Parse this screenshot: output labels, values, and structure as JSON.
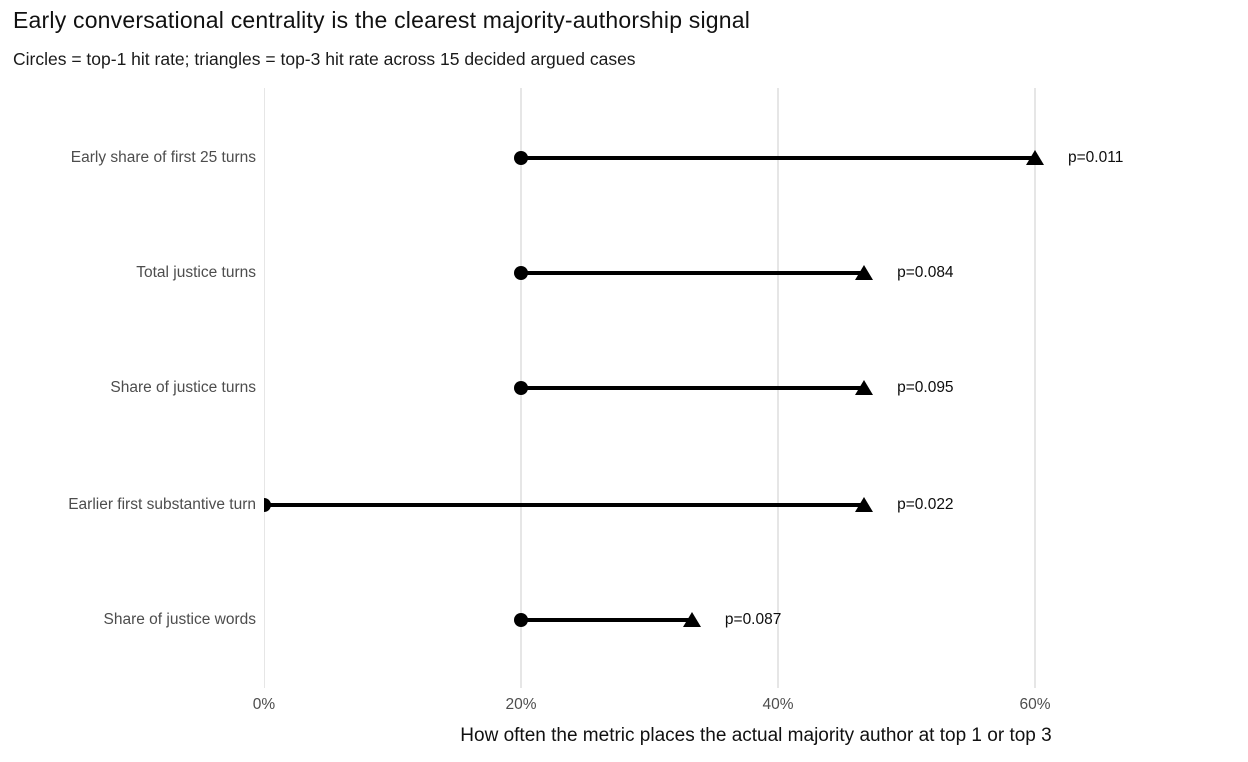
{
  "colors": {
    "background": "#ffffff",
    "gridline": "#e6e6e6",
    "marker": "#000000",
    "title_text": "#111111",
    "axis_text": "#4d4d4d",
    "p_label_text": "#0d0d0d"
  },
  "chart_data": {
    "type": "dumbbell",
    "title": "Early conversational centrality is the clearest majority-authorship signal",
    "subtitle": "Circles = top-1 hit rate; triangles = top-3 hit rate across 15 decided argued cases",
    "xlabel": "How often the metric places the actual majority author at top 1 or top 3",
    "x_ticks": [
      "0%",
      "20%",
      "40%",
      "60%"
    ],
    "x_tick_values": [
      0,
      20,
      40,
      60
    ],
    "xlim": [
      0,
      76.5
    ],
    "grid": "vertical-major-only",
    "marker_legend": {
      "circle": "top-1 hit rate",
      "triangle": "top-3 hit rate"
    },
    "rows": [
      {
        "label": "Early share of first 25 turns",
        "top1_pct": 20,
        "top3_pct": 60,
        "p_label": "p=0.011"
      },
      {
        "label": "Total justice turns",
        "top1_pct": 20,
        "top3_pct": 46.7,
        "p_label": "p=0.084"
      },
      {
        "label": "Share of justice turns",
        "top1_pct": 20,
        "top3_pct": 46.7,
        "p_label": "p=0.095"
      },
      {
        "label": "Earlier first substantive turn",
        "top1_pct": 0,
        "top3_pct": 46.7,
        "p_label": "p=0.022"
      },
      {
        "label": "Share of justice words",
        "top1_pct": 20,
        "top3_pct": 33.3,
        "p_label": "p=0.087"
      }
    ]
  }
}
